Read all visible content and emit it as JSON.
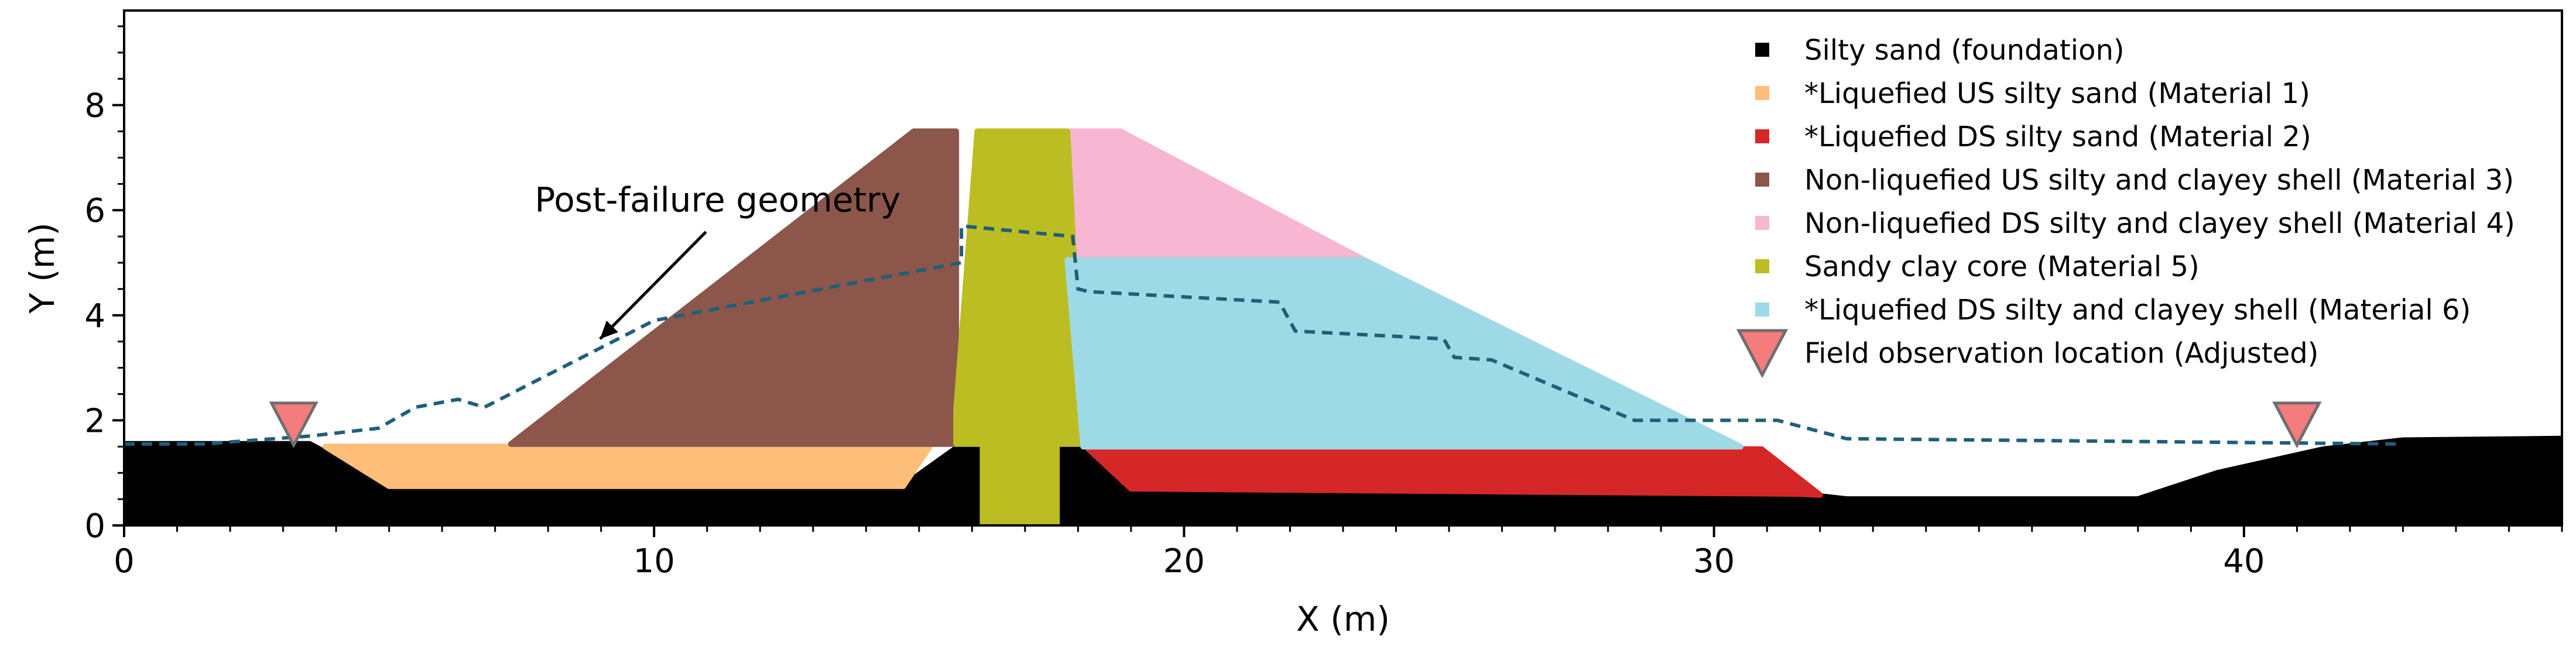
{
  "chart_data": {
    "type": "scatter",
    "xlabel": "X (m)",
    "ylabel": "Y (m)",
    "xlim": [
      0,
      46
    ],
    "ylim": [
      0,
      9.8
    ],
    "xticks": [
      0,
      10,
      20,
      30,
      40
    ],
    "yticks": [
      0,
      2,
      4,
      6,
      8
    ],
    "x_minor_step": 1,
    "y_minor_step": 0.5,
    "grid": false,
    "legend_placement": "top-right",
    "annotation": {
      "text": "Post-failure geometry",
      "text_at": [
        11.2,
        6.2
      ],
      "arrow_to": [
        8.98,
        3.55
      ]
    },
    "materials": [
      {
        "name": "Silty sand (foundation)",
        "color": "#000000",
        "polygons": [
          [
            [
              0,
              0
            ],
            [
              0,
              1.55
            ],
            [
              3.5,
              1.55
            ],
            [
              5,
              0.75
            ],
            [
              14.7,
              0.75
            ],
            [
              15.7,
              1.47
            ],
            [
              16.2,
              1.47
            ],
            [
              16.2,
              0
            ],
            [
              17.6,
              0
            ],
            [
              17.6,
              1.47
            ],
            [
              18.1,
              1.47
            ],
            [
              19,
              0.7
            ],
            [
              31.6,
              0.6
            ],
            [
              32.5,
              0.5
            ],
            [
              38,
              0.5
            ],
            [
              39.5,
              1.0
            ],
            [
              41.5,
              1.45
            ],
            [
              43,
              1.62
            ],
            [
              46,
              1.65
            ],
            [
              46,
              0
            ]
          ]
        ]
      },
      {
        "name": "*Liquefied US silty sand (Material 1)",
        "color": "#fdbe7a",
        "polygons": [
          [
            [
              3.8,
              1.5
            ],
            [
              15.2,
              1.5
            ],
            [
              14.7,
              0.75
            ],
            [
              5,
              0.75
            ]
          ]
        ]
      },
      {
        "name": "*Liquefied DS silty sand (Material 2)",
        "color": "#d62728",
        "polygons": [
          [
            [
              18.2,
              1.45
            ],
            [
              30.9,
              1.45
            ],
            [
              32,
              0.58
            ],
            [
              31.6,
              0.6
            ],
            [
              19,
              0.7
            ]
          ]
        ]
      },
      {
        "name": "Non-liquefied US silty and clayey shell (Material 3)",
        "color": "#8c564b",
        "polygons": [
          [
            [
              7.3,
              1.55
            ],
            [
              15.7,
              1.55
            ],
            [
              15.7,
              7.5
            ],
            [
              14.9,
              7.5
            ]
          ]
        ]
      },
      {
        "name": "Non-liquefied DS silty and clayey shell (Material 4)",
        "color": "#f7b6d2",
        "polygons": [
          [
            [
              17.8,
              7.5
            ],
            [
              18.8,
              7.5
            ],
            [
              23.4,
              5.05
            ],
            [
              17.8,
              5.05
            ]
          ]
        ]
      },
      {
        "name": "Sandy clay core (Material 5)",
        "color": "#bcbd22",
        "polygons": [
          [
            [
              15.7,
              1.55
            ],
            [
              18.1,
              1.55
            ],
            [
              17.8,
              7.5
            ],
            [
              16.1,
              7.5
            ],
            [
              15.7,
              2.2
            ]
          ],
          [
            [
              16.2,
              0
            ],
            [
              17.6,
              0
            ],
            [
              17.6,
              1.55
            ],
            [
              16.2,
              1.55
            ]
          ]
        ]
      },
      {
        "name": "*Liquefied DS silty and clayey shell (Material 6)",
        "color": "#9edae5",
        "polygons": [
          [
            [
              17.8,
              5.05
            ],
            [
              23.4,
              5.05
            ],
            [
              30.5,
              1.5
            ],
            [
              18.1,
              1.5
            ]
          ]
        ]
      }
    ],
    "post_failure_geometry": {
      "color": "#1f5f7a",
      "style": "dashed",
      "x": [
        0,
        1.5,
        3.5,
        4.8,
        5.5,
        6.3,
        6.8,
        10,
        15.8,
        15.8,
        17.9,
        18,
        18.2,
        21.8,
        22.1,
        24.9,
        25.1,
        25.8,
        28.5,
        31.2,
        32.5,
        42.9
      ],
      "y": [
        1.55,
        1.55,
        1.7,
        1.85,
        2.25,
        2.4,
        2.25,
        3.9,
        5.0,
        5.7,
        5.5,
        4.5,
        4.45,
        4.25,
        3.7,
        3.55,
        3.2,
        3.15,
        2.0,
        2.0,
        1.65,
        1.55
      ]
    },
    "field_observations": {
      "name": "Field observation location (Adjusted)",
      "color": "#f47c7c",
      "edge_color": "#6e6e6e",
      "x": [
        3.2,
        41.0
      ],
      "y": [
        1.95,
        1.95
      ]
    },
    "legend": [
      {
        "label": "Silty sand (foundation)",
        "color": "#000000",
        "marker": "square"
      },
      {
        "label": "*Liquefied US silty sand (Material 1)",
        "color": "#fdbe7a",
        "marker": "square"
      },
      {
        "label": "*Liquefied DS silty sand (Material 2)",
        "color": "#d62728",
        "marker": "square"
      },
      {
        "label": "Non-liquefied US silty and clayey shell (Material 3)",
        "color": "#8c564b",
        "marker": "square"
      },
      {
        "label": "Non-liquefied DS silty and clayey shell (Material 4)",
        "color": "#f7b6d2",
        "marker": "square"
      },
      {
        "label": "Sandy clay core (Material 5)",
        "color": "#bcbd22",
        "marker": "square"
      },
      {
        "label": "*Liquefied DS silty and clayey shell (Material 6)",
        "color": "#9edae5",
        "marker": "square"
      },
      {
        "label": "Field observation location (Adjusted)",
        "color": "#f47c7c",
        "marker": "triangle-down"
      }
    ]
  }
}
